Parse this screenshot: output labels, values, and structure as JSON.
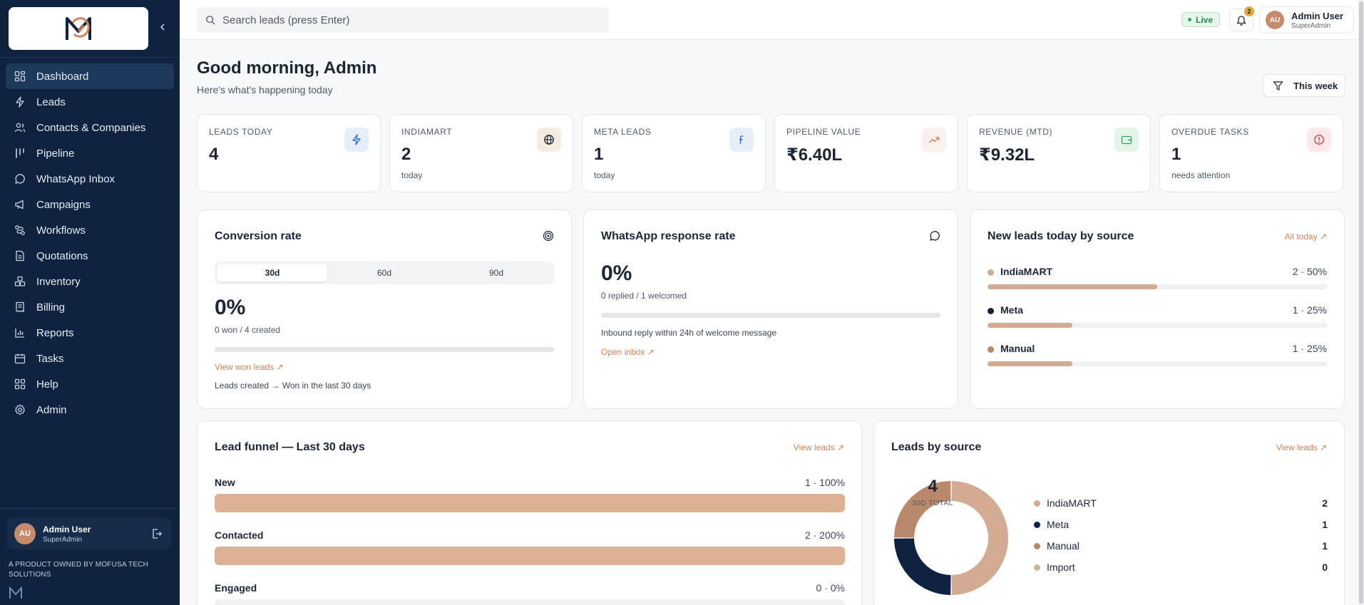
{
  "sidebar": {
    "items": [
      {
        "label": "Dashboard",
        "icon": "dashboard-icon",
        "active": true
      },
      {
        "label": "Leads",
        "icon": "zap-icon"
      },
      {
        "label": "Contacts & Companies",
        "icon": "users-icon"
      },
      {
        "label": "Pipeline",
        "icon": "kanban-icon"
      },
      {
        "label": "WhatsApp Inbox",
        "icon": "message-circle-icon"
      },
      {
        "label": "Campaigns",
        "icon": "megaphone-icon"
      },
      {
        "label": "Workflows",
        "icon": "workflow-icon"
      },
      {
        "label": "Quotations",
        "icon": "file-text-icon"
      },
      {
        "label": "Inventory",
        "icon": "boxes-icon"
      },
      {
        "label": "Billing",
        "icon": "receipt-icon"
      },
      {
        "label": "Reports",
        "icon": "bar-chart-icon"
      },
      {
        "label": "Tasks",
        "icon": "calendar-icon"
      },
      {
        "label": "Help",
        "icon": "grid-icon"
      },
      {
        "label": "Admin",
        "icon": "settings-icon"
      }
    ],
    "user": {
      "initials": "AU",
      "name": "Admin User",
      "role": "SuperAdmin"
    },
    "footer": "A PRODUCT OWNED BY MOFUSA TECH SOLUTIONS"
  },
  "topbar": {
    "search_placeholder": "Search leads (press Enter)",
    "live_label": "Live",
    "notification_count": "2",
    "user": {
      "initials": "AU",
      "name": "Admin User",
      "role": "SuperAdmin"
    }
  },
  "header": {
    "greeting": "Good morning, Admin",
    "subtitle": "Here's what's happening today",
    "range_button": "This week"
  },
  "stats": [
    {
      "label": "LEADS TODAY",
      "value": "4",
      "sub": "",
      "icon": "zap-icon",
      "icon_bg": "#e6eefb",
      "icon_color": "#2f6fd6"
    },
    {
      "label": "INDIAMART",
      "value": "2",
      "sub": "today",
      "icon": "globe-icon",
      "icon_bg": "#f6ebe1",
      "icon_color": "#1b2533"
    },
    {
      "label": "META LEADS",
      "value": "1",
      "sub": "today",
      "icon": "facebook-icon",
      "icon_bg": "#e6eefb",
      "icon_color": "#2f6fd6"
    },
    {
      "label": "PIPELINE VALUE",
      "value": "₹6.40L",
      "sub": "",
      "icon": "trending-up-icon",
      "icon_bg": "#fbf1ec",
      "icon_color": "#d4825a"
    },
    {
      "label": "REVENUE (MTD)",
      "value": "₹9.32L",
      "sub": "",
      "icon": "wallet-icon",
      "icon_bg": "#e3f4e8",
      "icon_color": "#2fa55a"
    },
    {
      "label": "OVERDUE TASKS",
      "value": "1",
      "sub": "needs attention",
      "icon": "alert-circle-icon",
      "icon_bg": "#fde8ea",
      "icon_color": "#d93a4b"
    }
  ],
  "conversion": {
    "title": "Conversion rate",
    "tabs": [
      "30d",
      "60d",
      "90d"
    ],
    "active_tab": "30d",
    "value": "0%",
    "detail": "0 won / 4 created",
    "progress": 0,
    "link": "View won leads ↗",
    "footnote": "Leads created → Won in the last 30 days"
  },
  "whatsapp": {
    "title": "WhatsApp response rate",
    "value": "0%",
    "detail": "0 replied / 1 welcomed",
    "progress": 0,
    "note": "Inbound reply within 24h of welcome message",
    "link": "Open inbox ↗"
  },
  "new_leads": {
    "title": "New leads today by source",
    "link": "All today ↗",
    "rows": [
      {
        "name": "IndiaMART",
        "count": "2 · 50%",
        "pct": 50,
        "color": "#d3aa92"
      },
      {
        "name": "Meta",
        "count": "1 · 25%",
        "pct": 25,
        "color": "#0f2340"
      },
      {
        "name": "Manual",
        "count": "1 · 25%",
        "pct": 25,
        "color": "#b9876a"
      }
    ]
  },
  "funnel": {
    "title": "Lead funnel — Last 30 days",
    "link": "View leads ↗",
    "rows": [
      {
        "name": "New",
        "count": "1 · 100%",
        "pct": 100
      },
      {
        "name": "Contacted",
        "count": "2 · 200%",
        "pct": 100
      },
      {
        "name": "Engaged",
        "count": "0 · 0%",
        "pct": 0
      }
    ]
  },
  "sources": {
    "title": "Leads by source",
    "link": "View leads ↗",
    "total": "4",
    "total_label": "30D TOTAL",
    "chart_data": {
      "type": "pie",
      "categories": [
        "IndiaMART",
        "Meta",
        "Manual",
        "Import"
      ],
      "values": [
        2,
        1,
        1,
        0
      ],
      "colors": [
        "#d3aa92",
        "#0f2340",
        "#b9876a",
        "#ccb49e"
      ]
    },
    "legend": [
      {
        "name": "IndiaMART",
        "value": "2",
        "color": "#d3aa92"
      },
      {
        "name": "Meta",
        "value": "1",
        "color": "#0f2340"
      },
      {
        "name": "Manual",
        "value": "1",
        "color": "#b9876a"
      },
      {
        "name": "Import",
        "value": "0",
        "color": "#ccb49e"
      }
    ]
  }
}
